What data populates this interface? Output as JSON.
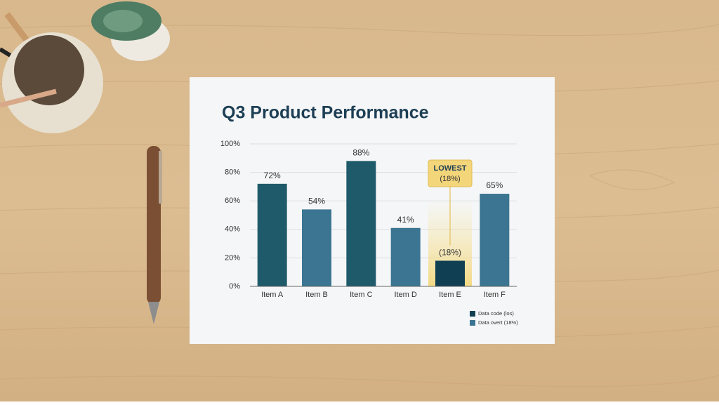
{
  "chart_data": {
    "type": "bar",
    "title": "Q3 Product Performance",
    "categories": [
      "Item A",
      "Item B",
      "Item C",
      "Item D",
      "Item E",
      "Item F"
    ],
    "values": [
      72,
      54,
      88,
      41,
      18,
      65
    ],
    "value_labels": [
      "72%",
      "54%",
      "88%",
      "41%",
      "(18%)",
      "65%"
    ],
    "colors": [
      "#1f5a6b",
      "#3b7592",
      "#1f5a6b",
      "#3b7592",
      "#103f53",
      "#3b7592"
    ],
    "ylim": [
      0,
      100
    ],
    "yticks": [
      {
        "value": 0,
        "label": "0%"
      },
      {
        "value": 20,
        "label": "20%"
      },
      {
        "value": 40,
        "label": "40%"
      },
      {
        "value": 60,
        "label": "60%"
      },
      {
        "value": 80,
        "label": "80%"
      },
      {
        "value": 100,
        "label": "100%"
      }
    ],
    "grid": true,
    "annotation": {
      "text": "LOWEST",
      "subtext": "(18%)"
    },
    "legend": [
      {
        "name": "Data code (los)",
        "color": "#103f53"
      },
      {
        "name": "Data overt (18%)",
        "color": "#3b7592"
      }
    ]
  }
}
